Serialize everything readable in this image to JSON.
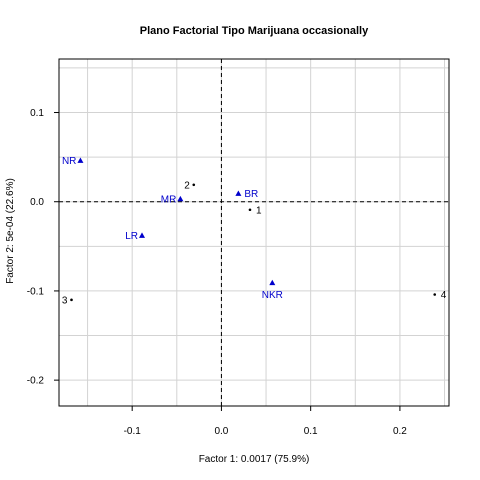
{
  "chart_data": {
    "type": "scatter",
    "title": "Plano Factorial Tipo Marijuana occasionally",
    "xlabel": "Factor 1: 0.0017 (75.9%)",
    "ylabel": "Factor 2: 5e-04 (22.6%)",
    "xlim": [
      -0.182,
      0.255
    ],
    "ylim": [
      -0.229,
      0.16
    ],
    "xticks": [
      -0.1,
      0.0,
      0.1,
      0.2
    ],
    "xtick_labels": [
      "-0.1",
      "0.0",
      "0.1",
      "0.2"
    ],
    "yticks": [
      -0.2,
      -0.1,
      0.0,
      0.1
    ],
    "ytick_labels": [
      "-0.2",
      "-0.1",
      "0.0",
      "0.1"
    ],
    "grid": true,
    "reference_lines": {
      "x": 0,
      "y": 0,
      "style": "dashed"
    },
    "series": [
      {
        "marker": "dot",
        "color": "#000000",
        "points": [
          {
            "label": "1",
            "x": 0.032,
            "y": -0.009,
            "label_pos": "right"
          },
          {
            "label": "2",
            "x": -0.031,
            "y": 0.019,
            "label_pos": "left"
          },
          {
            "label": "3",
            "x": -0.168,
            "y": -0.11,
            "label_pos": "left"
          },
          {
            "label": "4",
            "x": 0.239,
            "y": -0.104,
            "label_pos": "right"
          }
        ]
      },
      {
        "marker": "triangle",
        "color": "#0000cc",
        "points": [
          {
            "label": "NR",
            "x": -0.158,
            "y": 0.046,
            "label_pos": "left"
          },
          {
            "label": "BR",
            "x": 0.019,
            "y": 0.009,
            "label_pos": "right"
          },
          {
            "label": "MR",
            "x": -0.046,
            "y": 0.003,
            "label_pos": "left"
          },
          {
            "label": "LR",
            "x": -0.089,
            "y": -0.038,
            "label_pos": "left"
          },
          {
            "label": "NKR",
            "x": 0.057,
            "y": -0.091,
            "label_pos": "below"
          }
        ]
      }
    ]
  }
}
